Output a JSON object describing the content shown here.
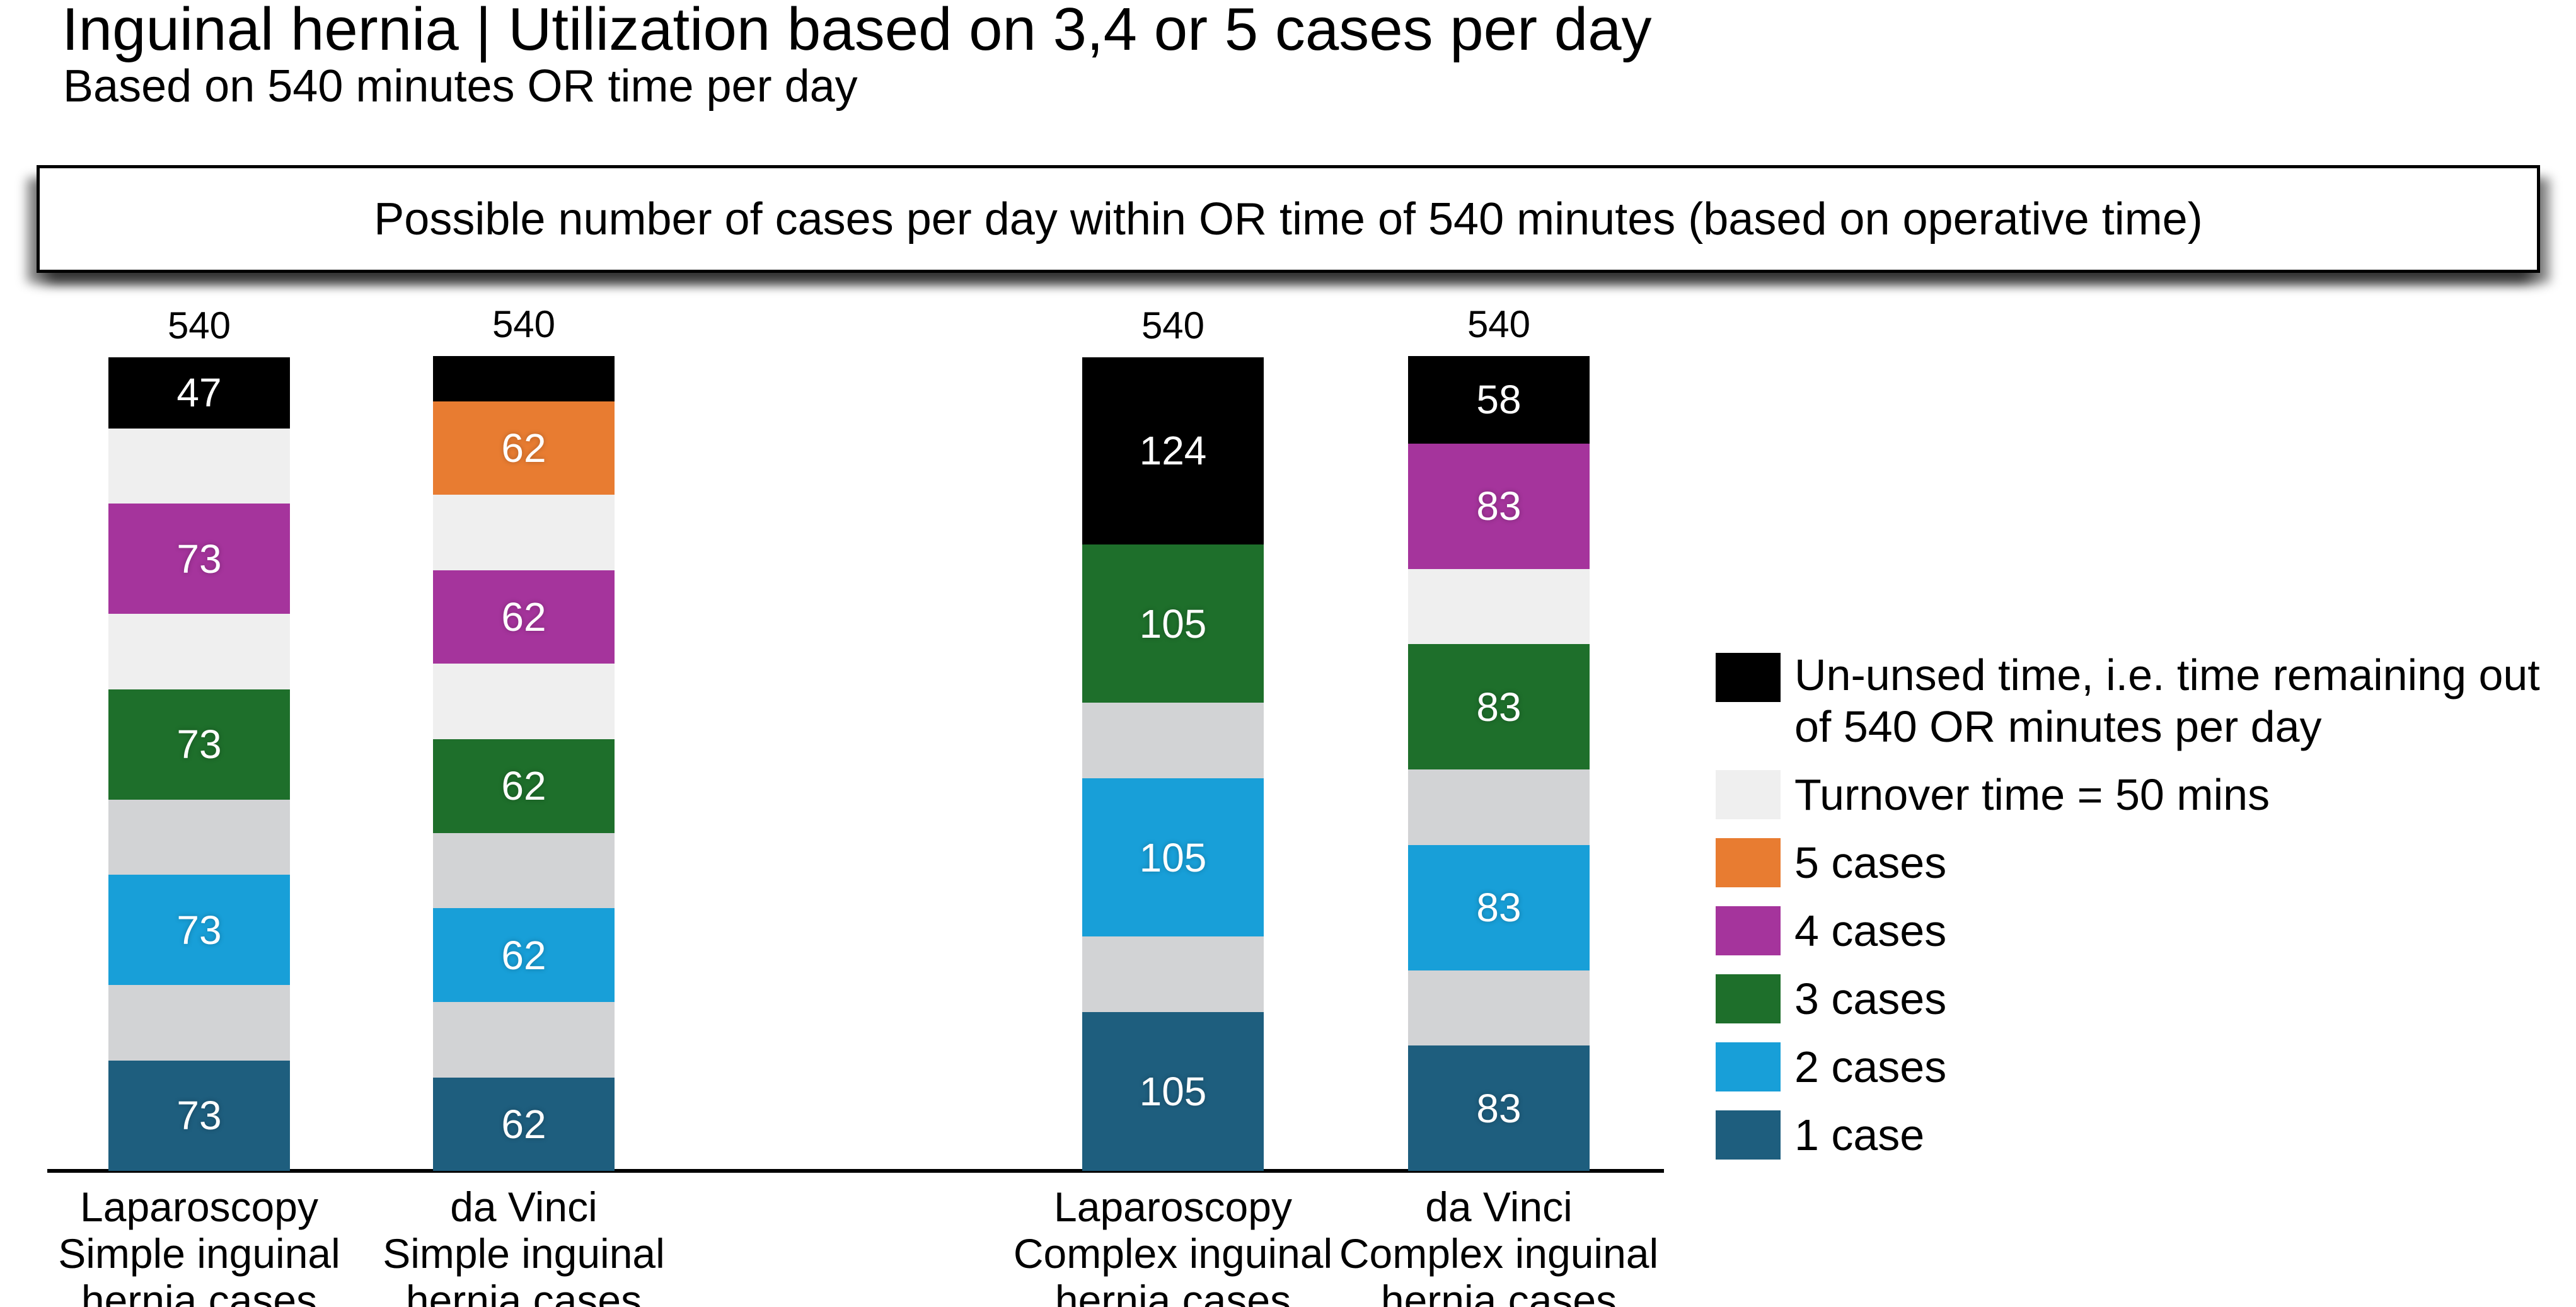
{
  "page": {
    "background": "#ffffff"
  },
  "header": {
    "title": "Inguinal hernia | Utilization based on 3,4 or 5 cases per day",
    "subtitle": "Based on 540 minutes OR time per day"
  },
  "banner": {
    "text": "Possible number of cases per day within OR time of 540 minutes (based on operative time)"
  },
  "colors": {
    "unused": "#000000",
    "turnover_light": "#efefef",
    "turnover_dark": "#d2d3d5",
    "case5": "#e87c31",
    "case4": "#a5349c",
    "case3": "#1e6f2b",
    "case2": "#189fd8",
    "case1": "#1e5e7e",
    "value_label": "#ffffff",
    "text": "#000000",
    "axis": "#000000"
  },
  "chart_data": {
    "type": "bar",
    "stacked": true,
    "unit": "minutes",
    "title": "Possible number of cases per day within OR time of 540 minutes (based on operative time)",
    "xlabel": "",
    "ylabel": "",
    "ylim": [
      0,
      540
    ],
    "grid": false,
    "legend_position": "right",
    "total_or_minutes_per_day": 540,
    "turnover_minutes": 50,
    "bars": [
      {
        "id": "laparoscopy-simple",
        "category_lines": [
          "Laparoscopy",
          "Simple inguinal",
          "hernia cases"
        ],
        "total_label": "540",
        "segments_top_to_bottom": [
          {
            "role": "unused",
            "minutes": 47,
            "label": "47"
          },
          {
            "role": "turnover_light",
            "minutes": 50,
            "label": ""
          },
          {
            "role": "case4",
            "minutes": 73,
            "label": "73"
          },
          {
            "role": "turnover_light",
            "minutes": 50,
            "label": ""
          },
          {
            "role": "case3",
            "minutes": 73,
            "label": "73"
          },
          {
            "role": "turnover_dark",
            "minutes": 50,
            "label": ""
          },
          {
            "role": "case2",
            "minutes": 73,
            "label": "73"
          },
          {
            "role": "turnover_dark",
            "minutes": 50,
            "label": ""
          },
          {
            "role": "case1",
            "minutes": 73,
            "label": "73"
          }
        ]
      },
      {
        "id": "davinci-simple",
        "category_lines": [
          "da Vinci",
          "Simple inguinal",
          "hernia cases"
        ],
        "total_label": "540",
        "segments_top_to_bottom": [
          {
            "role": "unused",
            "minutes": 30,
            "label": ""
          },
          {
            "role": "case5",
            "minutes": 62,
            "label": "62"
          },
          {
            "role": "turnover_light",
            "minutes": 50,
            "label": ""
          },
          {
            "role": "case4",
            "minutes": 62,
            "label": "62"
          },
          {
            "role": "turnover_light",
            "minutes": 50,
            "label": ""
          },
          {
            "role": "case3",
            "minutes": 62,
            "label": "62"
          },
          {
            "role": "turnover_dark",
            "minutes": 50,
            "label": ""
          },
          {
            "role": "case2",
            "minutes": 62,
            "label": "62"
          },
          {
            "role": "turnover_dark",
            "minutes": 50,
            "label": ""
          },
          {
            "role": "case1",
            "minutes": 62,
            "label": "62"
          }
        ]
      },
      {
        "id": "laparoscopy-complex",
        "category_lines": [
          "Laparoscopy",
          "Complex inguinal",
          "hernia cases"
        ],
        "total_label": "540",
        "segments_top_to_bottom": [
          {
            "role": "unused",
            "minutes": 124,
            "label": "124"
          },
          {
            "role": "case3",
            "minutes": 105,
            "label": "105"
          },
          {
            "role": "turnover_dark",
            "minutes": 50,
            "label": ""
          },
          {
            "role": "case2",
            "minutes": 105,
            "label": "105"
          },
          {
            "role": "turnover_dark",
            "minutes": 50,
            "label": ""
          },
          {
            "role": "case1",
            "minutes": 105,
            "label": "105"
          }
        ]
      },
      {
        "id": "davinci-complex",
        "category_lines": [
          "da Vinci",
          "Complex inguinal",
          "hernia cases"
        ],
        "total_label": "540",
        "segments_top_to_bottom": [
          {
            "role": "unused",
            "minutes": 58,
            "label": "58"
          },
          {
            "role": "case4",
            "minutes": 83,
            "label": "83"
          },
          {
            "role": "turnover_light",
            "minutes": 50,
            "label": ""
          },
          {
            "role": "case3",
            "minutes": 83,
            "label": "83"
          },
          {
            "role": "turnover_dark",
            "minutes": 50,
            "label": ""
          },
          {
            "role": "case2",
            "minutes": 83,
            "label": "83"
          },
          {
            "role": "turnover_dark",
            "minutes": 50,
            "label": ""
          },
          {
            "role": "case1",
            "minutes": 83,
            "label": "83"
          }
        ]
      }
    ],
    "legend": [
      {
        "swatch": "unused",
        "label": "Un-unsed time, i.e. time remaining out of 540 OR minutes per day",
        "multiline": true
      },
      {
        "swatch": "turnover_light",
        "label": "Turnover time = 50 mins"
      },
      {
        "swatch": "case5",
        "label": "5 cases"
      },
      {
        "swatch": "case4",
        "label": "4 cases"
      },
      {
        "swatch": "case3",
        "label": "3 cases"
      },
      {
        "swatch": "case2",
        "label": "2 cases"
      },
      {
        "swatch": "case1",
        "label": "1 case"
      }
    ]
  }
}
